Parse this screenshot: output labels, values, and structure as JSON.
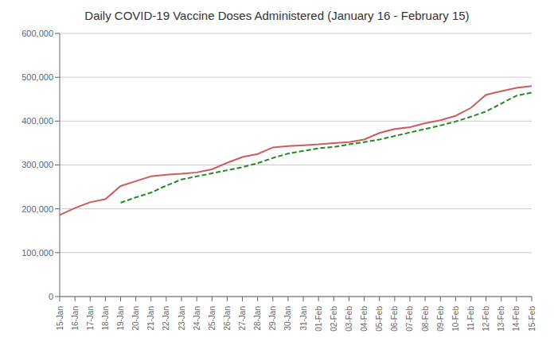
{
  "chart_data": {
    "type": "line",
    "title": "Daily COVID-19 Vaccine Doses Administered (January 16 - February 15)",
    "categories": [
      "15-Jan",
      "16-Jan",
      "17-Jan",
      "18-Jan",
      "19-Jan",
      "20-Jan",
      "21-Jan",
      "22-Jan",
      "23-Jan",
      "24-Jan",
      "25-Jan",
      "26-Jan",
      "27-Jan",
      "28-Jan",
      "29-Jan",
      "30-Jan",
      "31-Jan",
      "01-Feb",
      "02-Feb",
      "03-Feb",
      "04-Feb",
      "05-Feb",
      "06-Feb",
      "07-Feb",
      "08-Feb",
      "09-Feb",
      "10-Feb",
      "11-Feb",
      "12-Feb",
      "13-Feb",
      "14-Feb",
      "15-Feb"
    ],
    "series": [
      {
        "color": "#cd5c5c",
        "line_style": "solid",
        "values": [
          186000,
          202000,
          215000,
          222000,
          252000,
          263000,
          274000,
          278000,
          280000,
          283000,
          290000,
          305000,
          318000,
          325000,
          340000,
          343000,
          345000,
          347000,
          350000,
          352000,
          358000,
          373000,
          382000,
          386000,
          395000,
          402000,
          412000,
          430000,
          460000,
          468000,
          476000,
          480000
        ]
      },
      {
        "color": "#228B22",
        "line_style": "dashed",
        "values": [
          null,
          null,
          null,
          null,
          214000,
          226000,
          237000,
          253000,
          267000,
          274000,
          281000,
          288000,
          295000,
          304000,
          316000,
          326000,
          332000,
          338000,
          341000,
          347000,
          352000,
          358000,
          366000,
          374000,
          382000,
          390000,
          399000,
          410000,
          422000,
          440000,
          458000,
          465000
        ]
      }
    ],
    "ylim": [
      0,
      600000
    ],
    "yticks": [
      0,
      {
        "value": 100000,
        "label": "100,000"
      },
      {
        "value": 200000,
        "label": "200,000"
      },
      {
        "value": 300000,
        "label": "300,000"
      },
      {
        "value": 400000,
        "label": "400,000"
      },
      {
        "value": 500000,
        "label": "500,000"
      },
      {
        "value": 600000,
        "label": "600,000"
      }
    ],
    "grid": true
  }
}
